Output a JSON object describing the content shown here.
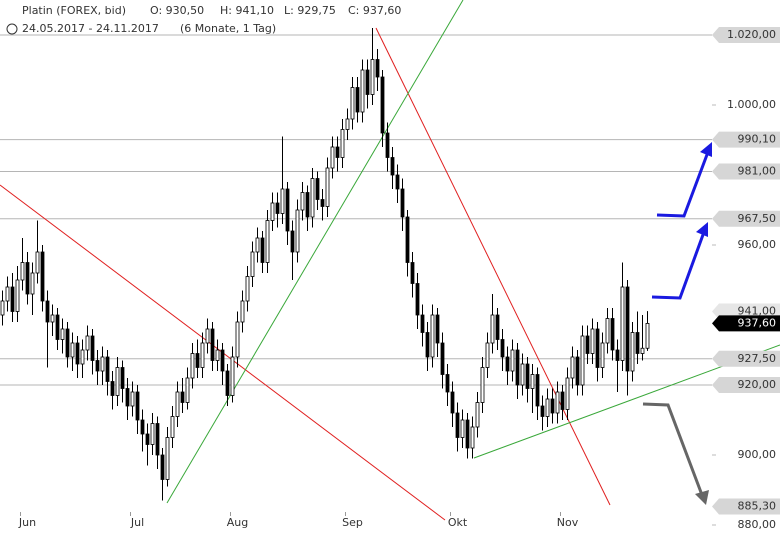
{
  "header": {
    "instrument": "Platin (FOREX, bid)",
    "open": "O: 930,50",
    "high": "H: 941,10",
    "low": "L: 929,75",
    "close": "C: 937,60",
    "range": "24.05.2017 - 24.11.2017",
    "period": "(6 Monate, 1 Tag)"
  },
  "chart_data": {
    "type": "candlestick",
    "up_color": "#ffffff",
    "down_color": "#000000",
    "wick_color": "#000000",
    "categories": [
      null,
      null,
      null,
      null,
      null,
      "Jun",
      null,
      null,
      null,
      null,
      null,
      null,
      null,
      null,
      null,
      null,
      null,
      null,
      null,
      null,
      null,
      null,
      null,
      null,
      null,
      null,
      null,
      "Jul",
      null,
      null,
      null,
      null,
      null,
      null,
      null,
      null,
      null,
      null,
      null,
      null,
      null,
      null,
      null,
      null,
      null,
      null,
      null,
      "Aug",
      null,
      null,
      null,
      null,
      null,
      null,
      null,
      null,
      null,
      null,
      null,
      null,
      null,
      null,
      null,
      null,
      null,
      null,
      null,
      null,
      null,
      null,
      "Sep",
      null,
      null,
      null,
      null,
      null,
      null,
      null,
      null,
      null,
      null,
      null,
      null,
      null,
      null,
      null,
      null,
      null,
      null,
      null,
      null,
      "Okt",
      null,
      null,
      null,
      null,
      null,
      null,
      null,
      null,
      null,
      null,
      null,
      null,
      null,
      null,
      null,
      null,
      null,
      null,
      null,
      null,
      null,
      "Nov",
      null,
      null,
      null,
      null,
      null,
      null,
      null,
      null,
      null,
      null,
      null,
      null,
      null,
      null,
      null,
      null
    ],
    "open": [
      940,
      944,
      948,
      941,
      950,
      955,
      946,
      952,
      958,
      944,
      938,
      940,
      933,
      936,
      928,
      932,
      926,
      930,
      934,
      927,
      924,
      928,
      921,
      917,
      925,
      919,
      914,
      918,
      910,
      906,
      903,
      909,
      900,
      893,
      905,
      911,
      918,
      915,
      922,
      929,
      925,
      932,
      936,
      927,
      930,
      924,
      917,
      928,
      938,
      944,
      951,
      958,
      962,
      955,
      967,
      972,
      969,
      976,
      964,
      958,
      970,
      975,
      968,
      979,
      973,
      971,
      982,
      988,
      985,
      993,
      996,
      1005,
      998,
      1010,
      1003,
      1013,
      1008,
      992,
      985,
      980,
      976,
      968,
      955,
      949,
      940,
      935,
      928,
      940,
      932,
      923,
      918,
      912,
      905,
      910,
      902,
      908,
      915,
      925,
      932,
      940,
      933,
      928,
      924,
      930,
      920,
      926,
      919,
      923,
      914,
      911,
      916,
      912,
      918,
      913,
      922,
      928,
      920,
      934,
      929,
      936,
      925,
      932,
      939,
      930,
      927,
      948,
      924,
      935,
      929,
      930.5
    ],
    "high": [
      947,
      951,
      952,
      954,
      962,
      958,
      955,
      967,
      960,
      947,
      943,
      942,
      939,
      938,
      935,
      934,
      933,
      937,
      936,
      930,
      931,
      930,
      924,
      928,
      927,
      922,
      921,
      920,
      913,
      909,
      912,
      911,
      902,
      908,
      914,
      921,
      922,
      925,
      932,
      933,
      935,
      939,
      938,
      933,
      932,
      926,
      931,
      941,
      947,
      954,
      961,
      965,
      964,
      970,
      975,
      975,
      991,
      978,
      967,
      973,
      978,
      977,
      982,
      981,
      976,
      985,
      991,
      991,
      996,
      999,
      1008,
      1008,
      1013,
      1013,
      1022,
      1016,
      1010,
      995,
      988,
      983,
      979,
      970,
      958,
      952,
      943,
      938,
      943,
      942,
      935,
      926,
      921,
      915,
      913,
      912,
      911,
      918,
      928,
      935,
      946,
      942,
      936,
      931,
      933,
      932,
      929,
      928,
      926,
      925,
      917,
      919,
      919,
      921,
      920,
      925,
      931,
      930,
      937,
      937,
      939,
      938,
      935,
      942,
      942,
      933,
      955,
      950,
      938,
      941,
      940,
      941.1
    ],
    "low": [
      937,
      941,
      938,
      938,
      947,
      943,
      940,
      949,
      941,
      925,
      934,
      930,
      929,
      925,
      924,
      922,
      922,
      927,
      923,
      920,
      920,
      917,
      913,
      914,
      915,
      910,
      911,
      906,
      901,
      897,
      900,
      896,
      887,
      891,
      902,
      908,
      912,
      913,
      919,
      922,
      922,
      929,
      924,
      924,
      920,
      914,
      915,
      925,
      935,
      941,
      948,
      955,
      952,
      952,
      964,
      965,
      966,
      960,
      950,
      955,
      967,
      964,
      965,
      970,
      967,
      968,
      979,
      981,
      982,
      990,
      993,
      995,
      995,
      999,
      1000,
      1004,
      988,
      981,
      976,
      972,
      964,
      951,
      945,
      936,
      931,
      924,
      925,
      928,
      919,
      914,
      908,
      901,
      902,
      899,
      899,
      905,
      912,
      922,
      929,
      930,
      924,
      920,
      921,
      916,
      917,
      915,
      912,
      910,
      907,
      908,
      909,
      909,
      910,
      910,
      919,
      917,
      917,
      926,
      926,
      921,
      922,
      929,
      927,
      918,
      924,
      917,
      921,
      926,
      927,
      929.75
    ],
    "close": [
      944,
      948,
      941,
      950,
      955,
      946,
      952,
      958,
      944,
      938,
      940,
      933,
      936,
      928,
      932,
      926,
      930,
      934,
      927,
      924,
      928,
      921,
      917,
      925,
      919,
      914,
      918,
      910,
      906,
      903,
      909,
      900,
      893,
      905,
      911,
      918,
      915,
      922,
      929,
      925,
      932,
      936,
      927,
      930,
      924,
      917,
      928,
      938,
      944,
      951,
      958,
      962,
      955,
      967,
      972,
      969,
      976,
      964,
      958,
      970,
      975,
      968,
      979,
      973,
      971,
      982,
      988,
      985,
      993,
      996,
      1005,
      998,
      1010,
      1003,
      1013,
      1008,
      992,
      985,
      980,
      976,
      968,
      955,
      949,
      940,
      935,
      928,
      940,
      932,
      923,
      918,
      912,
      905,
      910,
      902,
      908,
      915,
      925,
      932,
      940,
      933,
      928,
      924,
      930,
      920,
      926,
      919,
      923,
      914,
      911,
      916,
      912,
      918,
      913,
      922,
      928,
      920,
      934,
      929,
      936,
      925,
      932,
      939,
      930,
      927,
      948,
      924,
      935,
      929,
      930.5,
      937.6
    ],
    "ylim": [
      878,
      1030
    ],
    "yticks": [
      {
        "value": 1000,
        "label": "1.000,00"
      },
      {
        "value": 960,
        "label": "960,00"
      },
      {
        "value": 900,
        "label": "900,00"
      },
      {
        "value": 880,
        "label": "880,00"
      }
    ],
    "levels": [
      {
        "value": 1020,
        "label": "1.020,00",
        "line": true,
        "color": "#d6d6d6"
      },
      {
        "value": 990.1,
        "label": "990,10",
        "line": true,
        "color": "#d6d6d6"
      },
      {
        "value": 981,
        "label": "981,00",
        "line": true,
        "color": "#d6d6d6"
      },
      {
        "value": 967.5,
        "label": "967,50",
        "line": true,
        "color": "#d6d6d6"
      },
      {
        "value": 941,
        "label": "941,00",
        "line": false,
        "color": "#e6e6e6"
      },
      {
        "value": 927.5,
        "label": "927,50",
        "line": true,
        "color": "#d6d6d6"
      },
      {
        "value": 920,
        "label": "920,00",
        "line": true,
        "color": "#d6d6d6"
      },
      {
        "value": 885.3,
        "label": "885,30",
        "line": false,
        "color": "#d6d6d6"
      },
      {
        "value": 937.6,
        "label": "937,60",
        "line": false,
        "color": "#000000"
      }
    ]
  }
}
